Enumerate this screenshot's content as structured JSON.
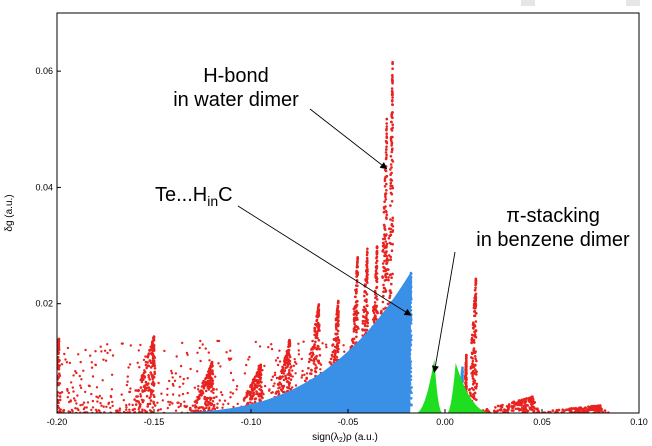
{
  "chart_data": {
    "type": "scatter",
    "title": "",
    "xlabel": {
      "main": "sign(λ",
      "sub": "2",
      "tail": ")ρ (a.u.)"
    },
    "ylabel": "δg (a.u.)",
    "xlim": [
      -0.2,
      0.1
    ],
    "ylim": [
      0.0012,
      0.07
    ],
    "xticks": [
      -0.2,
      -0.15,
      -0.1,
      -0.05,
      0,
      0.05,
      0.1
    ],
    "xtick_labels": [
      "-0.20",
      "-0.15",
      "-0.10",
      "-0.05",
      "0.00",
      "0.05",
      "0.10"
    ],
    "yticks": [
      0.02,
      0.04,
      0.06
    ],
    "ytick_labels": [
      "0.02",
      "0.04",
      "0.06"
    ],
    "grid": false,
    "legend": "none",
    "series_styles": [
      {
        "key": "background",
        "color": "#e8221f"
      },
      {
        "key": "tehc",
        "color": "#3a8fe6"
      },
      {
        "key": "pi",
        "color": "#1fdd1f"
      }
    ],
    "spikes": [
      {
        "x": -0.199,
        "top": 0.014,
        "spread": 0.008,
        "color": "#e8221f"
      },
      {
        "x": -0.15,
        "top": 0.0145,
        "spread": 0.01,
        "color": "#e8221f"
      },
      {
        "x": -0.12,
        "top": 0.01,
        "spread": 0.01,
        "color": "#e8221f"
      },
      {
        "x": -0.095,
        "top": 0.0095,
        "spread": 0.01,
        "color": "#e8221f"
      },
      {
        "x": -0.08,
        "top": 0.014,
        "spread": 0.008,
        "color": "#e8221f"
      },
      {
        "x": -0.065,
        "top": 0.02,
        "spread": 0.008,
        "color": "#e8221f"
      },
      {
        "x": -0.055,
        "top": 0.0205,
        "spread": 0.006,
        "color": "#e8221f"
      },
      {
        "x": -0.045,
        "top": 0.028,
        "spread": 0.005,
        "color": "#e8221f"
      },
      {
        "x": -0.04,
        "top": 0.0295,
        "spread": 0.0045,
        "color": "#e8221f"
      },
      {
        "x": -0.035,
        "top": 0.03,
        "spread": 0.0042,
        "color": "#e8221f"
      },
      {
        "x": -0.03,
        "top": 0.052,
        "spread": 0.0038,
        "color": "#e8221f"
      },
      {
        "x": -0.027,
        "top": 0.062,
        "spread": 0.0032,
        "color": "#e8221f"
      },
      {
        "x": -0.0175,
        "top": 0.0255,
        "spread": 0.0025,
        "color": "#3a8fe6"
      },
      {
        "x": 0.009,
        "top": 0.009,
        "spread": 0.0018,
        "color": "#3a8fe6"
      },
      {
        "x": 0.011,
        "top": 0.0112,
        "spread": 0.0012,
        "color": "#e8221f"
      },
      {
        "x": 0.016,
        "top": 0.025,
        "spread": 0.004,
        "color": "#e8221f"
      },
      {
        "x": 0.045,
        "top": 0.004,
        "spread": 0.025,
        "color": "#e8221f"
      },
      {
        "x": 0.08,
        "top": 0.0025,
        "spread": 0.03,
        "color": "#e8221f"
      }
    ],
    "points_red_region": {
      "x_range": [
        -0.2,
        -0.02
      ],
      "y_range": [
        0.0012,
        0.014
      ],
      "color": "#e8221f"
    },
    "wedges": [
      {
        "key": "tehc",
        "x_from": -0.16,
        "x_to": -0.018,
        "peak_x": -0.0175,
        "top": 0.0255,
        "color": "#3a8fe6"
      },
      {
        "key": "pi-left",
        "x_from": -0.015,
        "x_to": -0.001,
        "peak_x": -0.0055,
        "top": 0.0105,
        "color": "#1fdd1f"
      },
      {
        "key": "pi-right",
        "x_from": 0.001,
        "x_to": 0.025,
        "peak_x": 0.0055,
        "top": 0.0098,
        "color": "#1fdd1f"
      }
    ],
    "annotations": [
      {
        "id": "hbond",
        "lines": [
          "H-bond",
          "in water dimer"
        ],
        "arrow_to": {
          "x": -0.03,
          "y": 0.0432
        }
      },
      {
        "id": "tehc",
        "main": "Te...H",
        "sub": "in",
        "tail": "C",
        "arrow_to": {
          "x": -0.0175,
          "y": 0.018
        }
      },
      {
        "id": "pi",
        "lines": [
          "π-stacking",
          "in benzene dimer"
        ],
        "arrow_to": {
          "x": -0.0055,
          "y": 0.0082
        }
      }
    ]
  }
}
